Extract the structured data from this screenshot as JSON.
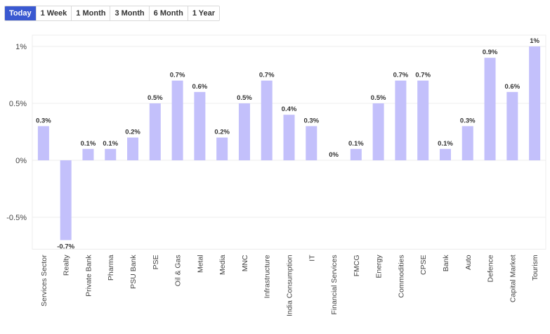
{
  "range_tabs": [
    {
      "label": "Today",
      "active": true
    },
    {
      "label": "1 Week",
      "active": false
    },
    {
      "label": "1 Month",
      "active": false
    },
    {
      "label": "3 Month",
      "active": false
    },
    {
      "label": "6 Month",
      "active": false
    },
    {
      "label": "1 Year",
      "active": false
    }
  ],
  "colors": {
    "bar": "#c3c0fb",
    "active_tab": "#3a59d1",
    "grid": "#ececec"
  },
  "chart_data": {
    "type": "bar",
    "categories": [
      "Services Sector",
      "Realty",
      "Private Bank",
      "Pharma",
      "PSU Bank",
      "PSE",
      "Oil & Gas",
      "Metal",
      "Media",
      "MNC",
      "Infrastructure",
      "India Consumption",
      "IT",
      "Financial Services",
      "FMCG",
      "Energy",
      "Commodities",
      "CPSE",
      "Bank",
      "Auto",
      "Defence",
      "Capital Market",
      "Tourism"
    ],
    "values": [
      0.3,
      -0.7,
      0.1,
      0.1,
      0.2,
      0.5,
      0.7,
      0.6,
      0.2,
      0.5,
      0.7,
      0.4,
      0.3,
      0,
      0.1,
      0.5,
      0.7,
      0.7,
      0.1,
      0.3,
      0.9,
      0.6,
      1
    ],
    "value_labels": [
      "0.3%",
      "-0.7%",
      "0.1%",
      "0.1%",
      "0.2%",
      "0.5%",
      "0.7%",
      "0.6%",
      "0.2%",
      "0.5%",
      "0.7%",
      "0.4%",
      "0.3%",
      "0%",
      "0.1%",
      "0.5%",
      "0.7%",
      "0.7%",
      "0.1%",
      "0.3%",
      "0.9%",
      "0.6%",
      "1%"
    ],
    "yticks": [
      1,
      0.5,
      0,
      -0.5
    ],
    "ytick_labels": [
      "1%",
      "0.5%",
      "0%",
      "-0.5%"
    ],
    "ylim": [
      -0.8,
      1.05
    ],
    "grid": true,
    "legend": "none"
  }
}
